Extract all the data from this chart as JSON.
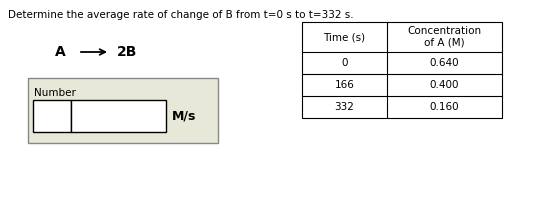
{
  "title": "Determine the average rate of change of B from t=0 s to t=332 s.",
  "table_headers": [
    "Time (s)",
    "Concentration\nof A (M)"
  ],
  "table_rows": [
    [
      "0",
      "0.640"
    ],
    [
      "166",
      "0.400"
    ],
    [
      "332",
      "0.160"
    ]
  ],
  "input_label": "Number",
  "input_unit": "M/s",
  "bg_color": "#ffffff",
  "input_box_bg": "#e8e8d8",
  "title_fontsize": 7.5,
  "reaction_fontsize": 10,
  "table_fontsize": 7.5,
  "number_label_fontsize": 7.5,
  "unit_fontsize": 9
}
